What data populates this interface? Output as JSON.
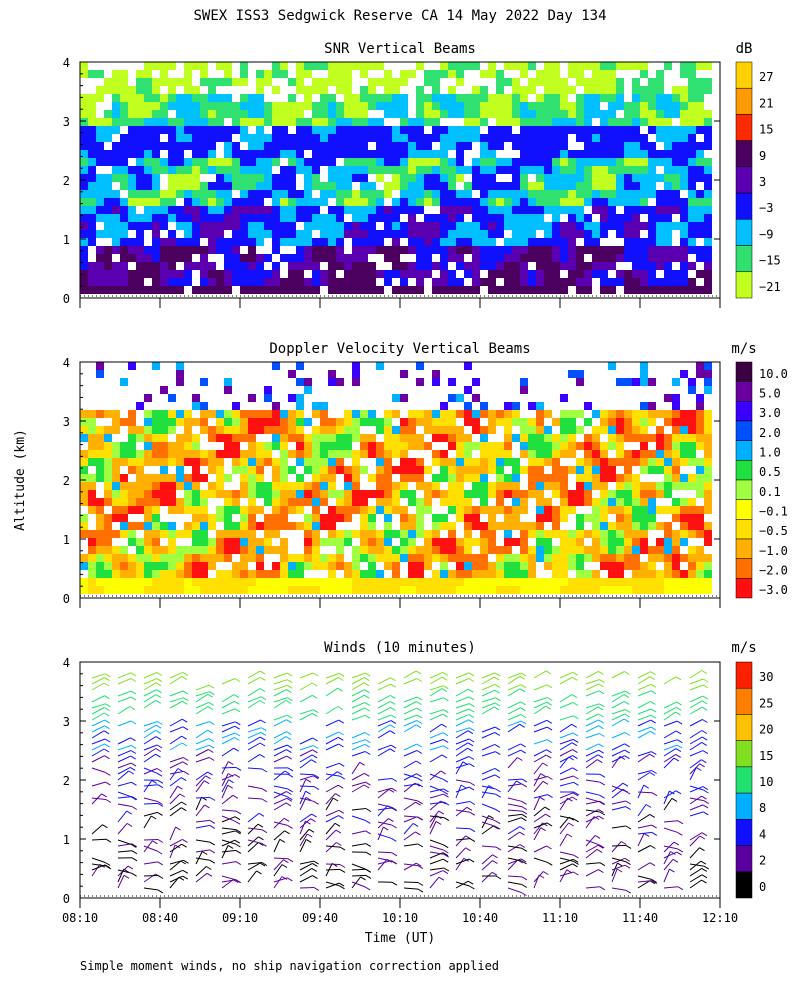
{
  "page": {
    "title": "SWEX ISS3 Sedgwick Reserve CA  14 May 2022 Day 134",
    "ylabel": "Altitude (km)",
    "xlabel": "Time (UT)",
    "footnote": "Simple moment winds, no ship navigation correction applied"
  },
  "x_ticks": [
    "08:10",
    "08:40",
    "09:10",
    "09:40",
    "10:10",
    "10:40",
    "11:10",
    "11:40",
    "12:10"
  ],
  "y_ticks": [
    "0",
    "1",
    "2",
    "3",
    "4"
  ],
  "chart_data": [
    {
      "type": "heatmap",
      "title": "SNR Vertical Beams",
      "unit": "dB",
      "xlim": [
        "08:10",
        "12:10"
      ],
      "ylim": [
        0,
        4
      ],
      "colorbar": {
        "labels": [
          "27",
          "21",
          "15",
          "9",
          "3",
          "−3",
          "−9",
          "−15",
          "−21"
        ],
        "colors": [
          "#ffd000",
          "#ff9a00",
          "#ff2a00",
          "#4b0060",
          "#5a00b0",
          "#1010ff",
          "#00c0ff",
          "#30e070",
          "#c0ff20"
        ]
      },
      "observations": {
        "dominant_low": "deep blue / purple below 1 km",
        "band": "blue layer near 2.6–2.9 km",
        "upper": "green / yellow-green above 3 km, gaps (white) where no data"
      }
    },
    {
      "type": "heatmap",
      "title": "Doppler Velocity Vertical Beams",
      "unit": "m/s",
      "xlim": [
        "08:10",
        "12:10"
      ],
      "ylim": [
        0,
        4
      ],
      "colorbar": {
        "labels": [
          "10.0",
          "5.0",
          "3.0",
          "2.0",
          "1.0",
          "0.5",
          "0.1",
          "−0.1",
          "−0.5",
          "−1.0",
          "−2.0",
          "−3.0"
        ],
        "colors": [
          "#3a0040",
          "#6a00a0",
          "#3a00ff",
          "#0050ff",
          "#00b0ff",
          "#20e040",
          "#a0ff40",
          "#ffff00",
          "#ffe000",
          "#ffb000",
          "#ff7000",
          "#ff1010"
        ]
      },
      "observations": {
        "dominant": "yellow / orange (weak downward motion) from surface to ~3 km",
        "upper": "sparse blue / purple returns above 3.2 km"
      }
    },
    {
      "type": "scatter",
      "title": "Winds (10 minutes)",
      "unit": "m/s",
      "xlim": [
        "08:10",
        "12:10"
      ],
      "ylim": [
        0,
        4
      ],
      "colorbar": {
        "labels": [
          "30",
          "25",
          "20",
          "15",
          "10",
          "8",
          "4",
          "2",
          "0"
        ],
        "colors": [
          "#ff2000",
          "#ff8000",
          "#ffc000",
          "#80e020",
          "#20e070",
          "#00b0ff",
          "#1010ff",
          "#5a00a0",
          "#000000"
        ]
      },
      "speed_profile_by_altitude_km": [
        {
          "altitude": 0.5,
          "speed": 2
        },
        {
          "altitude": 1.0,
          "speed": 3
        },
        {
          "altitude": 1.5,
          "speed": 4
        },
        {
          "altitude": 2.0,
          "speed": 5
        },
        {
          "altitude": 2.5,
          "speed": 8
        },
        {
          "altitude": 3.0,
          "speed": 13
        },
        {
          "altitude": 3.5,
          "speed": 18
        },
        {
          "altitude": 4.0,
          "speed": 22
        }
      ],
      "profiles_every_minutes": 10
    }
  ]
}
